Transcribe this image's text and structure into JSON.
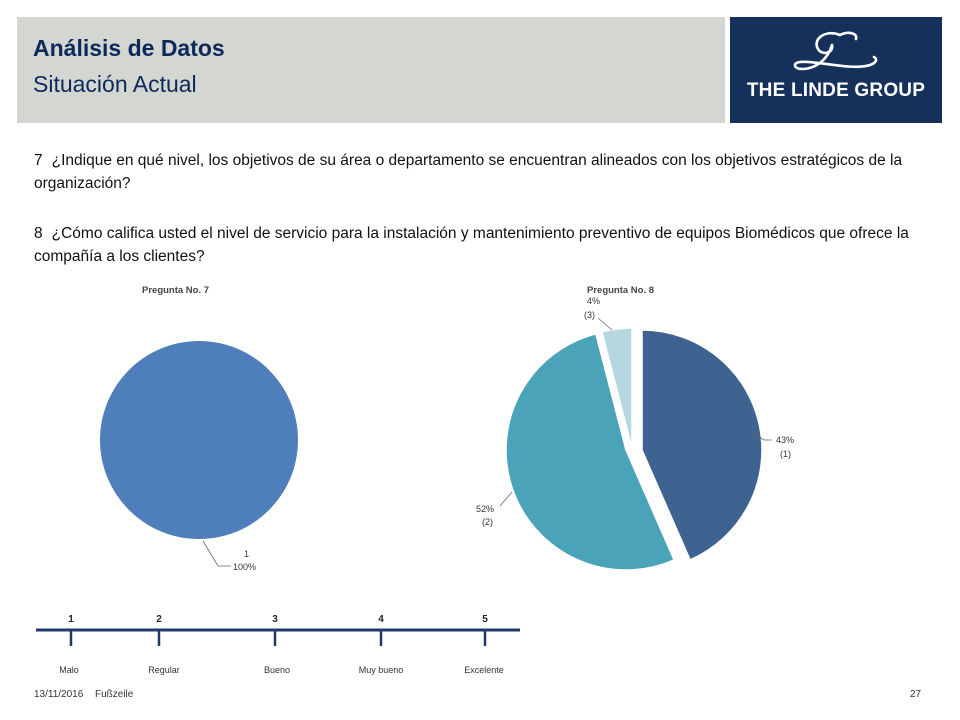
{
  "header": {
    "title": "Análisis de Datos",
    "subtitle": "Situación Actual",
    "logo_text": "THE LINDE GROUP",
    "logo_bg": "#16305c"
  },
  "questions": [
    {
      "number": "7",
      "text": "¿Indique en qué nivel, los objetivos de su área o departamento se encuentran alineados con los objetivos estratégicos de la organización?"
    },
    {
      "number": "8",
      "text": "¿Cómo califica usted el nivel de servicio para la instalación y mantenimiento preventivo de equipos Biomédicos que ofrece la compañía a los clientes?"
    }
  ],
  "chart_data": [
    {
      "type": "pie",
      "title": "Pregunta No. 7",
      "slices": [
        {
          "category": "1",
          "percent_label": "100%",
          "value": 100,
          "color": "#4f7fbb"
        }
      ]
    },
    {
      "type": "pie",
      "title": "Pregunta No. 8",
      "slices": [
        {
          "category": "(1)",
          "percent_label": "43%",
          "value": 43,
          "color": "#3f6391"
        },
        {
          "category": "(2)",
          "percent_label": "52%",
          "value": 52,
          "color": "#4aa3b8"
        },
        {
          "category": "(3)",
          "percent_label": "4%",
          "value": 4,
          "color": "#b5d7e0"
        }
      ]
    }
  ],
  "scale": {
    "color": "#1f3a66",
    "points": [
      {
        "number": "1",
        "label": "Malo"
      },
      {
        "number": "2",
        "label": "Regular"
      },
      {
        "number": "3",
        "label": "Bueno"
      },
      {
        "number": "4",
        "label": "Muy bueno"
      },
      {
        "number": "5",
        "label": "Excelente"
      }
    ]
  },
  "footer": {
    "date": "13/11/2016",
    "text": "Fußzeile",
    "page": "27"
  }
}
